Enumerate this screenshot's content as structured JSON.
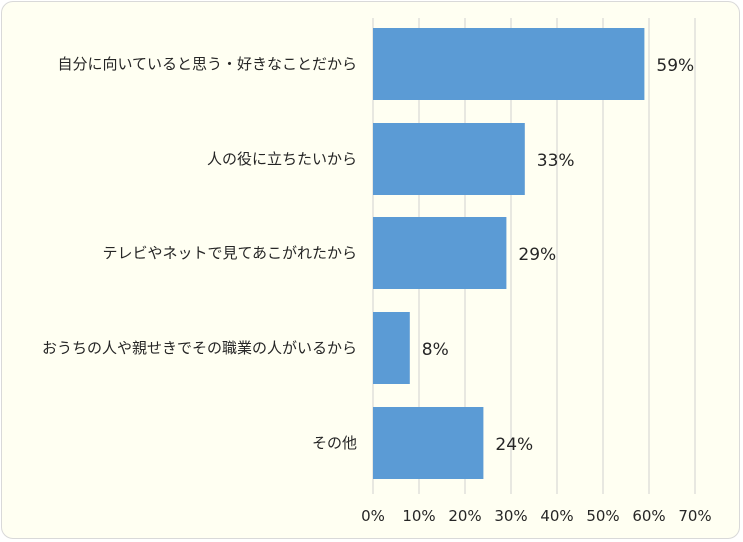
{
  "chart_data": {
    "type": "bar",
    "orientation": "horizontal",
    "categories": [
      "自分に向いていると思う・好きなことだから",
      "人の役に立ちたいから",
      "テレビやネットで見てあこがれたから",
      "おうちの人や親せきでその職業の人がいるから",
      "その他"
    ],
    "values": [
      59,
      33,
      29,
      8,
      24
    ],
    "value_labels": [
      "59%",
      "33%",
      "29%",
      "8%",
      "24%"
    ],
    "x_ticks": [
      "0%",
      "10%",
      "20%",
      "30%",
      "40%",
      "50%",
      "60%",
      "70%"
    ],
    "xlim": [
      0,
      70
    ],
    "grid": true,
    "bar_color": "#5b9bd5"
  }
}
